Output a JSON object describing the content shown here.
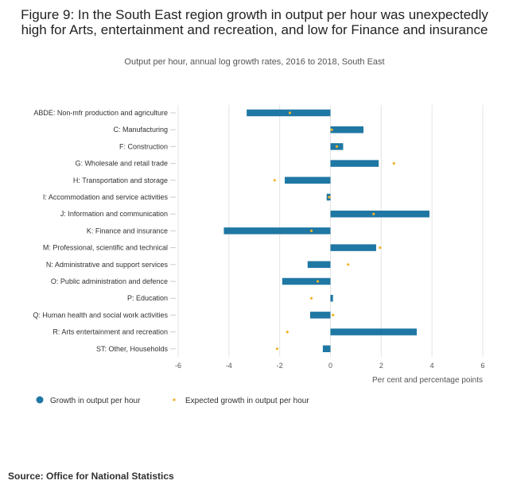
{
  "header": {
    "title": "Figure 9: In the South East region growth in output per hour was unexpectedly high for Arts, entertainment and recreation, and low for Finance and insurance",
    "subtitle": "Output per hour, annual log growth rates, 2016 to 2018, South East"
  },
  "footer": {
    "source": "Source: Office for National Statistics"
  },
  "colors": {
    "bar": "#1f77a4",
    "dot": "#f0b428",
    "grid": "#e4e4e4"
  },
  "chart_data": {
    "type": "bar",
    "orientation": "horizontal",
    "categories": [
      "ABDE: Non-mfr production and agriculture",
      "C: Manufacturing",
      "F: Construction",
      "G: Wholesale and retail trade",
      "H: Transportation and storage",
      "I: Accommodation and service activities",
      "J: Information and communication",
      "K: Finance and insurance",
      "M: Professional, scientific and technical",
      "N: Administrative and support services",
      "O: Public administration and defence",
      "P: Education",
      "Q: Human health and social work activities",
      "R: Arts entertainment and recreation",
      "ST: Other, Households"
    ],
    "series": [
      {
        "name": "Growth in output per hour",
        "kind": "bar",
        "values": [
          -3.3,
          1.3,
          0.5,
          1.9,
          -1.8,
          -0.15,
          3.9,
          -4.2,
          1.8,
          -0.9,
          -1.9,
          0.1,
          -0.8,
          3.4,
          -0.3
        ]
      },
      {
        "name": "Expected growth in output per hour",
        "kind": "dot",
        "values": [
          -1.6,
          0.05,
          0.25,
          2.5,
          -2.2,
          -0.05,
          1.7,
          -0.75,
          1.95,
          0.7,
          -0.5,
          -0.75,
          0.1,
          -1.7,
          -2.1
        ]
      }
    ],
    "xlabel": "Per cent and percentage points",
    "xlim": [
      -6,
      6
    ],
    "xticks": [
      -6,
      -4,
      -2,
      0,
      2,
      4,
      6
    ],
    "grid": true,
    "legend_position": "bottom-left"
  }
}
